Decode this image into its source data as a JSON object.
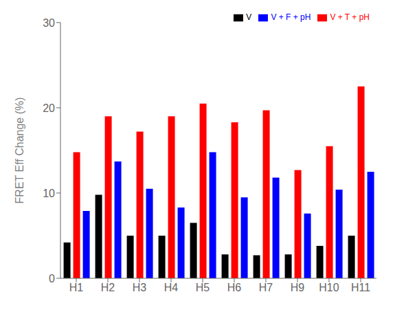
{
  "chart_data": {
    "type": "bar",
    "categories": [
      "H1",
      "H2",
      "H3",
      "H4",
      "H5",
      "H6",
      "H7",
      "H9",
      "H10",
      "H11"
    ],
    "series": [
      {
        "name": "V",
        "color": "#000000",
        "values": [
          4.2,
          9.8,
          5.0,
          5.0,
          6.5,
          2.8,
          2.7,
          2.8,
          3.8,
          5.0
        ]
      },
      {
        "name": "V + T + pH",
        "color": "#ff0000",
        "values": [
          14.8,
          19.0,
          17.2,
          19.0,
          20.5,
          18.3,
          19.7,
          12.7,
          15.5,
          22.5
        ]
      },
      {
        "name": "V + F + pH",
        "color": "#0000ff",
        "values": [
          7.9,
          13.7,
          10.5,
          8.3,
          14.8,
          9.5,
          11.8,
          7.6,
          10.4,
          12.5
        ]
      }
    ],
    "ylabel": "FRET  Eff Change (%)",
    "ylim": [
      0,
      30
    ],
    "yticks": [
      0,
      10,
      20,
      30
    ],
    "legend": "upper right",
    "grid": false
  }
}
